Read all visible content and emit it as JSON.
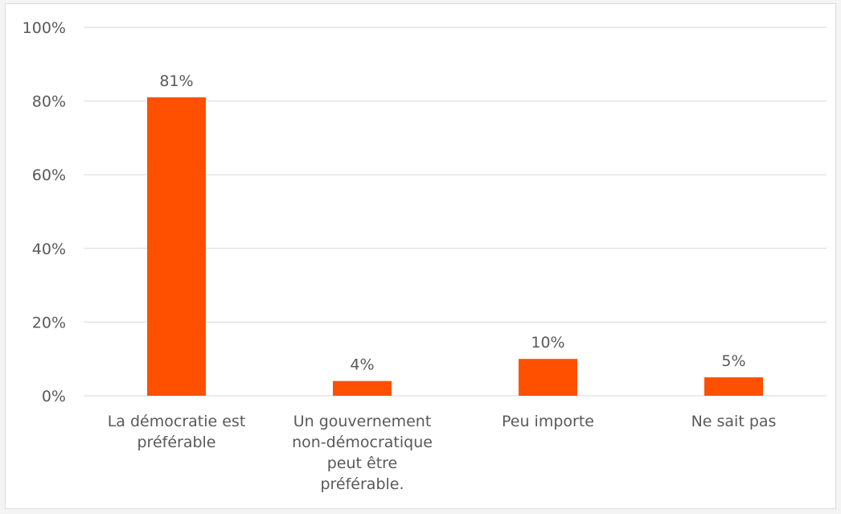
{
  "chart_data": {
    "type": "bar",
    "categories": [
      [
        "La démocratie est",
        "préférable"
      ],
      [
        "Un gouvernement",
        "non-démocratique",
        "peut être",
        "préférable."
      ],
      [
        "Peu importe"
      ],
      [
        "Ne sait pas"
      ]
    ],
    "values": [
      81,
      4,
      10,
      5
    ],
    "data_labels": [
      "81%",
      "4%",
      "10%",
      "5%"
    ],
    "y_ticks": [
      0,
      20,
      40,
      60,
      80,
      100
    ],
    "y_tick_labels": [
      "0%",
      "20%",
      "40%",
      "60%",
      "80%",
      "100%"
    ],
    "ylim": [
      0,
      100
    ],
    "grid": true,
    "bar_color": "#ff5000",
    "gridline_color": "#d9d9d9",
    "text_color": "#595959"
  }
}
